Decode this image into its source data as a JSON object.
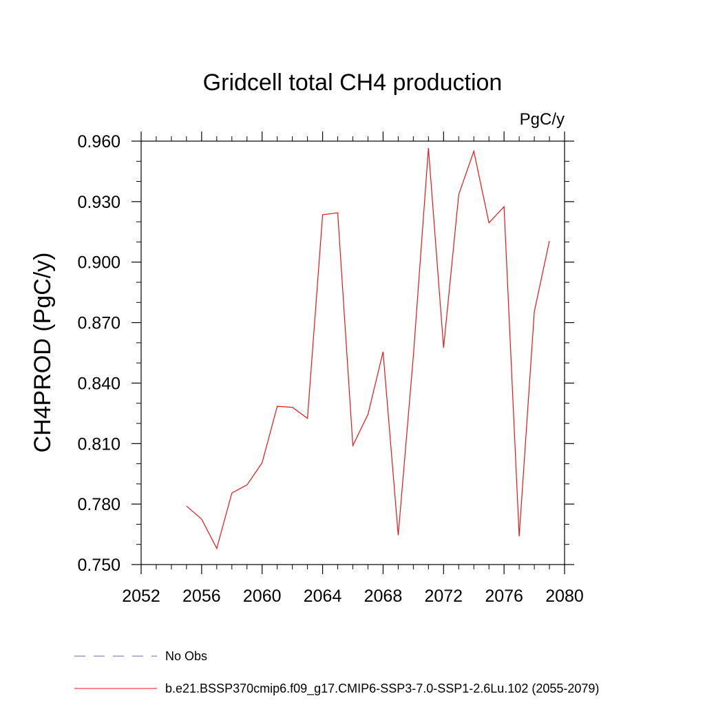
{
  "chart_data": {
    "type": "line",
    "title": "Gridcell total CH4 production",
    "units_label": "PgC/y",
    "ylabel": "CH4PROD  (PgC/y)",
    "xlabel": "",
    "xlim": [
      2052,
      2080
    ],
    "ylim": [
      0.75,
      0.96
    ],
    "x_ticks": [
      2052,
      2056,
      2060,
      2064,
      2068,
      2072,
      2076,
      2080
    ],
    "y_ticks": [
      0.75,
      0.78,
      0.81,
      0.84,
      0.87,
      0.9,
      0.93,
      0.96
    ],
    "x_tick_labels": [
      "2052",
      "2056",
      "2060",
      "2064",
      "2068",
      "2072",
      "2076",
      "2080"
    ],
    "y_tick_labels": [
      "0.750",
      "0.780",
      "0.810",
      "0.840",
      "0.870",
      "0.900",
      "0.930",
      "0.960"
    ],
    "grid": false,
    "legend_position": "bottom",
    "series": [
      {
        "name": "No Obs",
        "style": "dashed",
        "color": "#6666aa",
        "x": [],
        "y": []
      },
      {
        "name": "b.e21.BSSP370cmip6.f09_g17.CMIP6-SSP3-7.0-SSP1-2.6Lu.102 (2055-2079)",
        "style": "solid",
        "color": "#ee1111",
        "x": [
          2055,
          2056,
          2057,
          2058,
          2059,
          2060,
          2061,
          2062,
          2063,
          2064,
          2065,
          2066,
          2067,
          2068,
          2069,
          2070,
          2071,
          2072,
          2073,
          2074,
          2075,
          2076,
          2077,
          2078,
          2079
        ],
        "y": [
          0.779,
          0.7725,
          0.758,
          0.7855,
          0.7895,
          0.8005,
          0.8285,
          0.828,
          0.8225,
          0.9235,
          0.9245,
          0.809,
          0.8245,
          0.8555,
          0.7645,
          0.8535,
          0.9565,
          0.8575,
          0.9335,
          0.955,
          0.9195,
          0.9275,
          0.764,
          0.8755,
          0.9105
        ]
      }
    ]
  }
}
